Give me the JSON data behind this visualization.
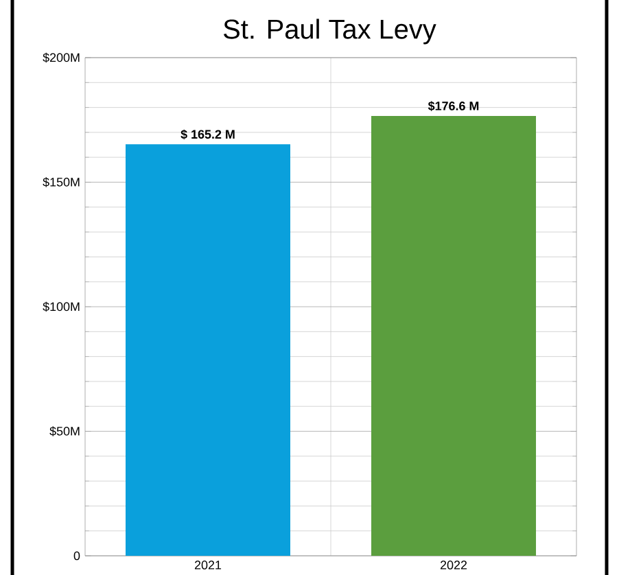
{
  "chart_data": {
    "type": "bar",
    "title": "St. Paul Tax Levy",
    "categories": [
      "2021",
      "2022"
    ],
    "series": [
      {
        "values": [
          165.2,
          176.6
        ],
        "colors": [
          "#0aa0dc",
          "#5b9e3e"
        ],
        "value_labels": [
          "$ 165.2 M",
          "$176.6 M"
        ]
      }
    ],
    "ylim": [
      0,
      200
    ],
    "yticks": [
      0,
      {
        "value": 50,
        "label": "$50M"
      },
      {
        "value": 100,
        "label": "$100M"
      },
      {
        "value": 150,
        "label": "$150M"
      },
      {
        "value": 200,
        "label": "$200M"
      }
    ],
    "grid": true
  }
}
